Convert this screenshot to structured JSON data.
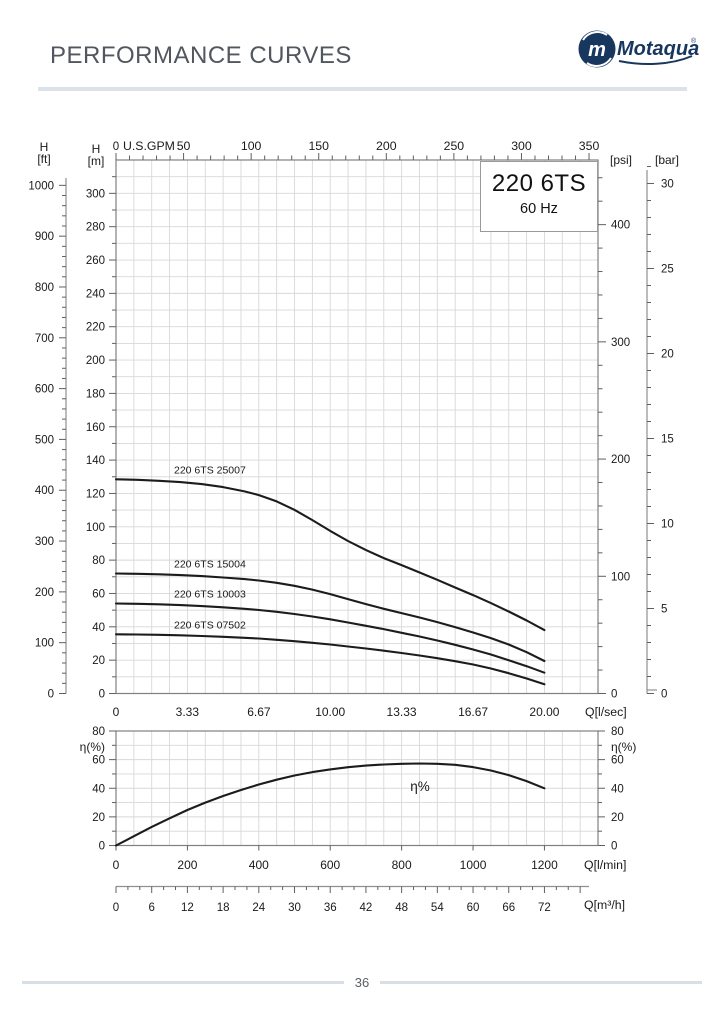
{
  "header": {
    "title": "PERFORMANCE CURVES",
    "logo": {
      "text": "Motaqua",
      "mark": "m",
      "registered": "®"
    }
  },
  "title_box": {
    "model": "220 6TS",
    "frequency": "60 Hz"
  },
  "footer": {
    "page_number": "36"
  },
  "colors": {
    "brand_navy": "#17375f",
    "header_text": "#51575e",
    "rule_blue": "#dbe2ea",
    "curve": "#1c1c1c",
    "grid": "#d8d8d8",
    "border": "#808080",
    "tick": "#606060",
    "label": "#1a1a1a"
  },
  "chart_data": [
    {
      "type": "line",
      "name": "head-vs-flow",
      "title": "220 6TS",
      "subtitle": "60 Hz",
      "grid": true,
      "axes": {
        "top_gpm": {
          "zero_label": "0",
          "unit": "U.S.GPM",
          "ticks": [
            50,
            100,
            150,
            200,
            250,
            300,
            350
          ],
          "minor_step": 10,
          "range": [
            0,
            356
          ]
        },
        "bottom_lsec": {
          "unit": "Q[l/sec]",
          "tick_labels": [
            "0",
            "3.33",
            "6.67",
            "10.00",
            "13.33",
            "16.67",
            "20.00"
          ],
          "tick_values": [
            0,
            3.33,
            6.67,
            10,
            13.33,
            16.67,
            20
          ],
          "range": [
            0,
            22.5
          ]
        },
        "left_m": {
          "name": "H",
          "unit": "[m]",
          "ticks": [
            0,
            20,
            40,
            60,
            80,
            100,
            120,
            140,
            160,
            180,
            200,
            220,
            240,
            260,
            280,
            300
          ],
          "minor_step": 10,
          "range": [
            0,
            320
          ]
        },
        "left_ft": {
          "name": "H",
          "unit": "[ft]",
          "ticks": [
            0,
            100,
            200,
            300,
            400,
            500,
            600,
            700,
            800,
            900,
            1000
          ],
          "minor_step": 20
        },
        "right_psi": {
          "unit": "[psi]",
          "ticks": [
            0,
            100,
            200,
            300,
            400
          ],
          "minor_step": 20
        },
        "right_bar": {
          "unit": "[bar]",
          "ticks": [
            0,
            5,
            10,
            15,
            20,
            25,
            30
          ],
          "minor_step": 1
        }
      },
      "series": [
        {
          "label": "220 6TS 25007",
          "points": [
            [
              0,
              128.5
            ],
            [
              1,
              128.2
            ],
            [
              2,
              127.6
            ],
            [
              3,
              126.8
            ],
            [
              4,
              125.6
            ],
            [
              5,
              123.8
            ],
            [
              6,
              121.2
            ],
            [
              6.67,
              119
            ],
            [
              7.5,
              115.2
            ],
            [
              8.33,
              110.2
            ],
            [
              9.17,
              104
            ],
            [
              10,
              97.5
            ],
            [
              10.83,
              91.5
            ],
            [
              11.67,
              86
            ],
            [
              12.5,
              81.2
            ],
            [
              13.33,
              77
            ],
            [
              14.17,
              72.6
            ],
            [
              15,
              68.2
            ],
            [
              15.83,
              63.6
            ],
            [
              16.67,
              59
            ],
            [
              17.5,
              54.2
            ],
            [
              18.33,
              49.2
            ],
            [
              19.17,
              43.8
            ],
            [
              20,
              38
            ]
          ]
        },
        {
          "label": "220 6TS 15004",
          "points": [
            [
              0,
              72
            ],
            [
              1,
              71.8
            ],
            [
              2,
              71.5
            ],
            [
              3,
              71
            ],
            [
              4,
              70.4
            ],
            [
              5,
              69.6
            ],
            [
              6,
              68.6
            ],
            [
              6.67,
              67.8
            ],
            [
              7.5,
              66.4
            ],
            [
              8.33,
              64.6
            ],
            [
              9.17,
              62.3
            ],
            [
              10,
              59.6
            ],
            [
              10.83,
              56.6
            ],
            [
              11.67,
              53.6
            ],
            [
              12.5,
              50.8
            ],
            [
              13.33,
              48.2
            ],
            [
              14.17,
              45.6
            ],
            [
              15,
              42.8
            ],
            [
              15.83,
              39.8
            ],
            [
              16.67,
              36.6
            ],
            [
              17.5,
              33.2
            ],
            [
              18.33,
              29.4
            ],
            [
              19.17,
              24.8
            ],
            [
              20,
              19.5
            ]
          ]
        },
        {
          "label": "220 6TS 10003",
          "points": [
            [
              0,
              54
            ],
            [
              1,
              53.8
            ],
            [
              2,
              53.5
            ],
            [
              3,
              53
            ],
            [
              4,
              52.4
            ],
            [
              5,
              51.7
            ],
            [
              6,
              50.8
            ],
            [
              6.67,
              50.1
            ],
            [
              7.5,
              49
            ],
            [
              8.33,
              47.7
            ],
            [
              9.17,
              46.2
            ],
            [
              10,
              44.5
            ],
            [
              10.83,
              42.6
            ],
            [
              11.67,
              40.6
            ],
            [
              12.5,
              38.6
            ],
            [
              13.33,
              36.4
            ],
            [
              14.17,
              34.2
            ],
            [
              15,
              31.8
            ],
            [
              15.83,
              29.2
            ],
            [
              16.67,
              26.4
            ],
            [
              17.5,
              23.4
            ],
            [
              18.33,
              20
            ],
            [
              19.17,
              16.4
            ],
            [
              20,
              12.5
            ]
          ]
        },
        {
          "label": "220 6TS 07502",
          "points": [
            [
              0,
              35.5
            ],
            [
              1,
              35.4
            ],
            [
              2,
              35.2
            ],
            [
              3,
              34.9
            ],
            [
              4,
              34.5
            ],
            [
              5,
              34
            ],
            [
              6,
              33.4
            ],
            [
              6.67,
              33
            ],
            [
              7.5,
              32.2
            ],
            [
              8.33,
              31.4
            ],
            [
              9.17,
              30.4
            ],
            [
              10,
              29.4
            ],
            [
              10.83,
              28.2
            ],
            [
              11.67,
              27
            ],
            [
              12.5,
              25.7
            ],
            [
              13.33,
              24.3
            ],
            [
              14.17,
              22.8
            ],
            [
              15,
              21.2
            ],
            [
              15.83,
              19.4
            ],
            [
              16.67,
              17.4
            ],
            [
              17.5,
              15
            ],
            [
              18.33,
              12.2
            ],
            [
              19.17,
              9
            ],
            [
              20,
              5.5
            ]
          ]
        }
      ]
    },
    {
      "type": "line",
      "name": "efficiency-vs-flow",
      "curve_label": "η%",
      "y_axis": {
        "unit": "η(%)",
        "ticks": [
          0,
          20,
          40,
          60,
          80
        ],
        "minor_step": 10,
        "range": [
          0,
          80
        ]
      },
      "x_axis_lmin": {
        "unit": "Q[l/min]",
        "ticks": [
          0,
          200,
          400,
          600,
          800,
          1000,
          1200
        ],
        "minor_step": 50,
        "range": [
          0,
          1350
        ]
      },
      "x_axis_m3h": {
        "unit": "Q[m³/h]",
        "ticks": [
          0,
          6,
          12,
          18,
          24,
          30,
          36,
          42,
          48,
          54,
          60,
          66,
          72
        ],
        "minor_step": 2
      },
      "series": [
        {
          "label": "efficiency",
          "points": [
            [
              0,
              0
            ],
            [
              50,
              6.5
            ],
            [
              100,
              13
            ],
            [
              150,
              19
            ],
            [
              200,
              24.8
            ],
            [
              250,
              30
            ],
            [
              300,
              34.6
            ],
            [
              350,
              38.8
            ],
            [
              400,
              42.6
            ],
            [
              450,
              46
            ],
            [
              500,
              48.9
            ],
            [
              550,
              51.3
            ],
            [
              600,
              53.2
            ],
            [
              650,
              54.7
            ],
            [
              700,
              55.8
            ],
            [
              750,
              56.6
            ],
            [
              800,
              57.1
            ],
            [
              850,
              57.3
            ],
            [
              900,
              57.1
            ],
            [
              950,
              56.4
            ],
            [
              1000,
              54.8
            ],
            [
              1050,
              52.4
            ],
            [
              1100,
              49.2
            ],
            [
              1150,
              45
            ],
            [
              1200,
              40
            ]
          ]
        }
      ]
    }
  ]
}
